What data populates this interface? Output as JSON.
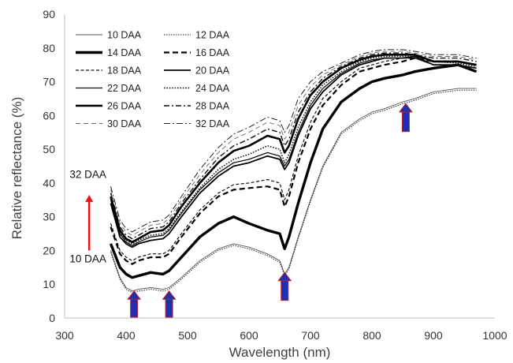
{
  "chart_data": {
    "type": "line",
    "xlabel": "Wavelength (nm)",
    "ylabel": "Relative reflectance (%)",
    "xlim": [
      300,
      1000
    ],
    "ylim": [
      0,
      90
    ],
    "xticks": [
      300,
      400,
      500,
      600,
      700,
      800,
      900,
      1000
    ],
    "yticks": [
      0,
      10,
      20,
      30,
      40,
      50,
      60,
      70,
      80,
      90
    ],
    "grid": false,
    "legend": "top-left",
    "x": [
      375,
      390,
      400,
      410,
      420,
      440,
      460,
      470,
      490,
      520,
      550,
      575,
      600,
      630,
      650,
      658,
      665,
      680,
      700,
      720,
      750,
      780,
      800,
      820,
      850,
      870,
      900,
      940,
      970
    ],
    "series": [
      {
        "name": "10 DAA",
        "values": [
          20,
          12,
          9,
          8,
          8.5,
          9,
          8.5,
          9,
          12,
          17,
          20.5,
          22,
          21,
          19,
          17,
          13,
          15,
          24,
          35,
          45,
          55,
          59,
          61,
          62,
          64,
          65,
          67,
          68,
          68
        ]
      },
      {
        "name": "12 DAA",
        "values": [
          19.5,
          11.5,
          8.5,
          7.5,
          8,
          8.5,
          8,
          8.5,
          11.5,
          16.5,
          20,
          21.5,
          20.5,
          18.5,
          16.5,
          12.5,
          14.5,
          23.5,
          34.5,
          44.5,
          54.5,
          58.5,
          60.5,
          61.5,
          63.5,
          64.5,
          66.5,
          67.5,
          67.5
        ]
      },
      {
        "name": "14 DAA",
        "values": [
          22,
          15,
          13,
          12,
          12.5,
          13.5,
          13,
          14,
          18,
          24,
          28,
          30,
          28,
          26,
          25,
          20.5,
          24,
          34,
          46,
          56,
          64,
          68,
          70,
          71,
          72,
          73,
          74,
          75,
          73
        ]
      },
      {
        "name": "16 DAA",
        "values": [
          27,
          19,
          17,
          16,
          17,
          18,
          18,
          19,
          24,
          31,
          36,
          38,
          38.5,
          39,
          38,
          33,
          36,
          46,
          56,
          63,
          69,
          73,
          74,
          75,
          76,
          77,
          76,
          76,
          75
        ]
      },
      {
        "name": "18 DAA",
        "values": [
          28,
          20,
          18,
          17,
          18,
          19,
          19,
          20,
          25,
          32,
          37,
          39.5,
          40,
          41,
          40,
          35,
          38,
          48,
          58,
          65,
          70,
          74,
          75,
          76,
          77,
          77.5,
          76,
          76,
          75
        ]
      },
      {
        "name": "20 DAA",
        "values": [
          34,
          24,
          22,
          21,
          22,
          23,
          23.5,
          25,
          30,
          37,
          42,
          45,
          46,
          48,
          47,
          44,
          46,
          54,
          62,
          67,
          72,
          75,
          76,
          77,
          77,
          77.5,
          75,
          75,
          74
        ]
      },
      {
        "name": "22 DAA",
        "values": [
          35,
          25,
          22.5,
          21.5,
          22.5,
          24,
          24.5,
          26,
          31,
          38,
          43,
          46,
          47,
          49,
          48,
          45,
          47,
          55,
          63,
          68,
          72.5,
          75.5,
          76.5,
          77,
          77,
          77,
          75,
          75,
          74
        ]
      },
      {
        "name": "24 DAA",
        "values": [
          35.5,
          25.5,
          23,
          22,
          23,
          24.5,
          25,
          26.5,
          31.5,
          38.5,
          44,
          47,
          48.5,
          51,
          50,
          46,
          48.5,
          56.5,
          64,
          69,
          73,
          76,
          77,
          77.5,
          77.5,
          77.5,
          76,
          75.5,
          74.5
        ]
      },
      {
        "name": "26 DAA",
        "values": [
          36,
          26,
          23.5,
          22.5,
          23.5,
          25.5,
          26,
          27.5,
          33,
          40,
          46,
          49.5,
          51,
          54,
          53,
          49,
          51,
          59,
          66,
          70,
          74,
          76.5,
          77.5,
          78,
          78,
          78,
          76,
          76,
          75
        ]
      },
      {
        "name": "28 DAA",
        "values": [
          37,
          27,
          24.5,
          23.5,
          24.5,
          26.5,
          27,
          28.5,
          34,
          41,
          47.5,
          51,
          53,
          56,
          55,
          51,
          53,
          61,
          67,
          71,
          74.5,
          77,
          78,
          78.5,
          78.5,
          78,
          77,
          77,
          76
        ]
      },
      {
        "name": "30 DAA",
        "values": [
          38,
          28,
          25.5,
          24.5,
          25.5,
          27.5,
          28,
          29.5,
          35,
          42.5,
          49,
          53,
          55,
          58,
          57,
          53,
          55,
          63,
          68.5,
          72,
          75,
          77.5,
          78.5,
          79,
          79,
          78.5,
          77.5,
          77.5,
          76.5
        ]
      },
      {
        "name": "32 DAA",
        "values": [
          39,
          29,
          26.5,
          25.5,
          26.5,
          28.5,
          29,
          30.5,
          36,
          44,
          50.5,
          54.5,
          56.5,
          59.5,
          58.5,
          55,
          57,
          65,
          70,
          73,
          75.5,
          78,
          79,
          79.5,
          79.5,
          79,
          78,
          78,
          77
        ]
      }
    ],
    "annotations": [
      {
        "text": "32 DAA",
        "x": 338,
        "y": 41.5
      },
      {
        "text": "10 DAA",
        "x": 338,
        "y": 16.5
      }
    ],
    "trend_arrow": {
      "x": 340,
      "from": 20,
      "to": 36.5,
      "color": "#e8141c"
    },
    "marker_arrows": [
      {
        "x": 413,
        "from": 0,
        "to": 8,
        "color": "#1f2fb3",
        "edge": "#c0202a"
      },
      {
        "x": 470,
        "from": 0,
        "to": 8,
        "color": "#1f2fb3",
        "edge": "#c0202a"
      },
      {
        "x": 658,
        "from": 5,
        "to": 13.5,
        "color": "#1f2fb3",
        "edge": "#c0202a"
      },
      {
        "x": 855,
        "from": 55,
        "to": 63.5,
        "color": "#1f2fb3",
        "edge": "#c0202a"
      }
    ]
  }
}
